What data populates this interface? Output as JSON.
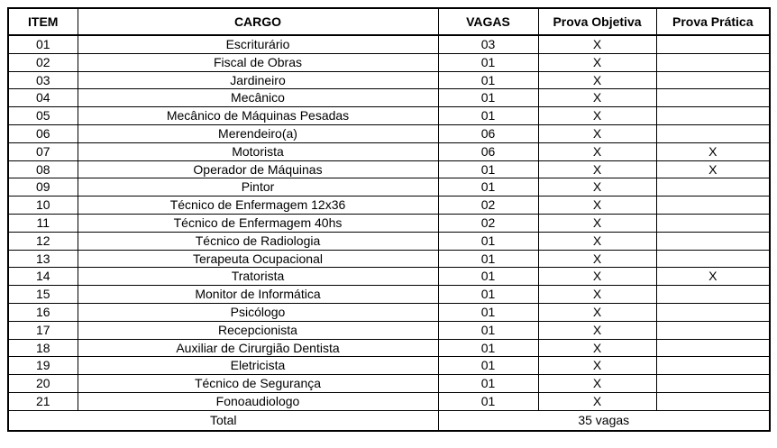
{
  "table": {
    "headers": [
      "ITEM",
      "CARGO",
      "VAGAS",
      "Prova Objetiva",
      "Prova Prática"
    ],
    "rows": [
      {
        "item": "01",
        "cargo": "Escriturário",
        "vagas": "03",
        "objetiva": "X",
        "pratica": ""
      },
      {
        "item": "02",
        "cargo": "Fiscal de Obras",
        "vagas": "01",
        "objetiva": "X",
        "pratica": ""
      },
      {
        "item": "03",
        "cargo": "Jardineiro",
        "vagas": "01",
        "objetiva": "X",
        "pratica": ""
      },
      {
        "item": "04",
        "cargo": "Mecânico",
        "vagas": "01",
        "objetiva": "X",
        "pratica": ""
      },
      {
        "item": "05",
        "cargo": "Mecânico de Máquinas Pesadas",
        "vagas": "01",
        "objetiva": "X",
        "pratica": ""
      },
      {
        "item": "06",
        "cargo": "Merendeiro(a)",
        "vagas": "06",
        "objetiva": "X",
        "pratica": ""
      },
      {
        "item": "07",
        "cargo": "Motorista",
        "vagas": "06",
        "objetiva": "X",
        "pratica": "X"
      },
      {
        "item": "08",
        "cargo": "Operador de Máquinas",
        "vagas": "01",
        "objetiva": "X",
        "pratica": "X"
      },
      {
        "item": "09",
        "cargo": "Pintor",
        "vagas": "01",
        "objetiva": "X",
        "pratica": ""
      },
      {
        "item": "10",
        "cargo": "Técnico de Enfermagem 12x36",
        "vagas": "02",
        "objetiva": "X",
        "pratica": ""
      },
      {
        "item": "11",
        "cargo": "Técnico de Enfermagem 40hs",
        "vagas": "02",
        "objetiva": "X",
        "pratica": ""
      },
      {
        "item": "12",
        "cargo": "Técnico de Radiologia",
        "vagas": "01",
        "objetiva": "X",
        "pratica": ""
      },
      {
        "item": "13",
        "cargo": "Terapeuta Ocupacional",
        "vagas": "01",
        "objetiva": "X",
        "pratica": ""
      },
      {
        "item": "14",
        "cargo": "Tratorista",
        "vagas": "01",
        "objetiva": "X",
        "pratica": "X"
      },
      {
        "item": "15",
        "cargo": "Monitor de Informática",
        "vagas": "01",
        "objetiva": "X",
        "pratica": ""
      },
      {
        "item": "16",
        "cargo": "Psicólogo",
        "vagas": "01",
        "objetiva": "X",
        "pratica": ""
      },
      {
        "item": "17",
        "cargo": "Recepcionista",
        "vagas": "01",
        "objetiva": "X",
        "pratica": ""
      },
      {
        "item": "18",
        "cargo": "Auxiliar de Cirurgião Dentista",
        "vagas": "01",
        "objetiva": "X",
        "pratica": ""
      },
      {
        "item": "19",
        "cargo": "Eletricista",
        "vagas": "01",
        "objetiva": "X",
        "pratica": ""
      },
      {
        "item": "20",
        "cargo": "Técnico de Segurança",
        "vagas": "01",
        "objetiva": "X",
        "pratica": ""
      },
      {
        "item": "21",
        "cargo": "Fonoaudiologo",
        "vagas": "01",
        "objetiva": "X",
        "pratica": ""
      }
    ],
    "total": {
      "label": "Total",
      "value": "35 vagas"
    }
  }
}
